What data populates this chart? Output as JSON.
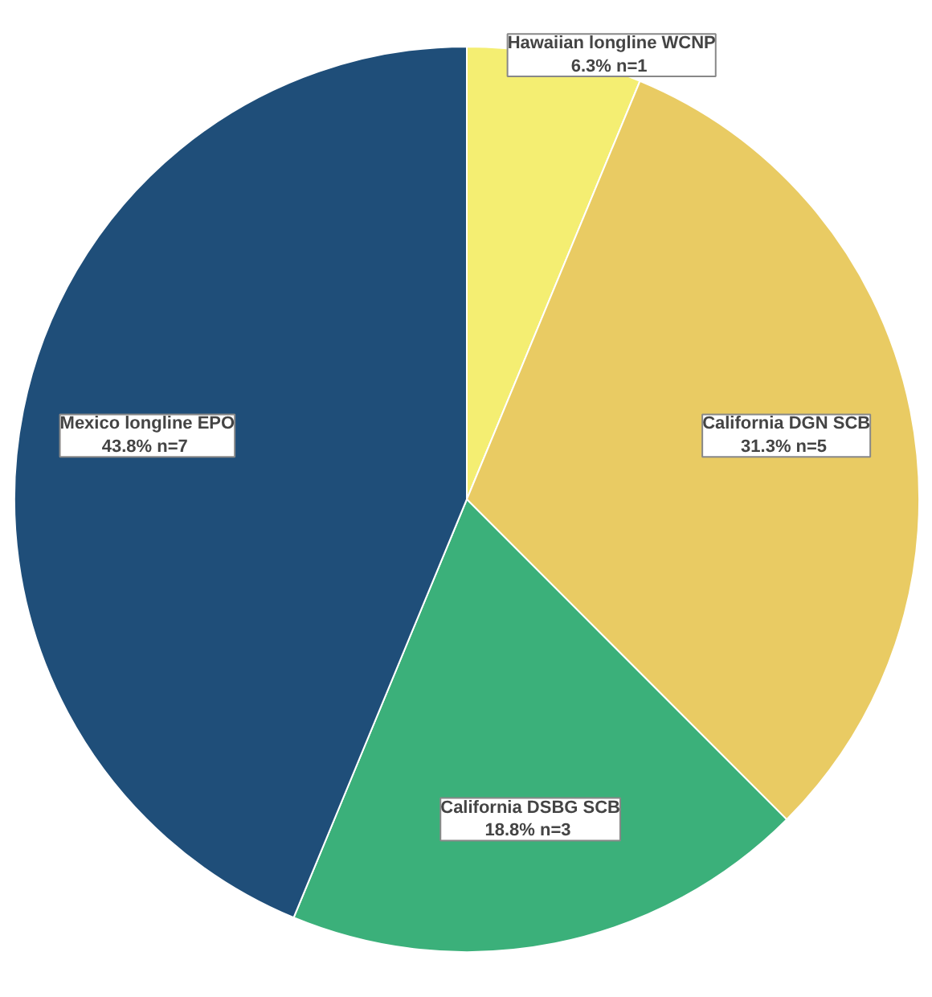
{
  "chart_data": {
    "type": "pie",
    "categories": [
      "Hawaiian longline WCNP",
      "California DGN SCB",
      "California DSBG SCB",
      "Mexico longline EPO"
    ],
    "values": [
      6.25,
      31.25,
      18.75,
      43.75
    ],
    "value_labels": [
      "6.3%  n=1",
      "31.3%  n=5",
      "18.8%  n=3",
      "43.8%  n=7"
    ],
    "colors": [
      "#f4ee72",
      "#e9cb63",
      "#3bb07a",
      "#1f4e79"
    ]
  }
}
